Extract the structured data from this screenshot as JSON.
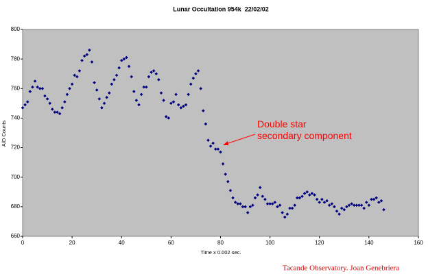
{
  "chart_data": {
    "type": "scatter",
    "title": "Lunar Occultation 954k  22/02/02",
    "x_label": "Time x 0.002 sec.",
    "y_label": "A/D Counts",
    "annotation_lines": [
      "Double star",
      "secondary component"
    ],
    "footer": "Tacande Observatory. Joan Genebriera",
    "color": "#000080",
    "plot_background": "#c0c0c0",
    "grid": false,
    "xlim": [
      0,
      160
    ],
    "xticks": [
      0,
      20,
      40,
      60,
      80,
      100,
      120,
      140,
      160
    ],
    "ylim": [
      660,
      800
    ],
    "yticks": [
      660,
      680,
      700,
      720,
      740,
      760,
      780,
      800
    ],
    "x": [
      0,
      1,
      2,
      3,
      4,
      5,
      6,
      7,
      8,
      9,
      10,
      11,
      12,
      13,
      14,
      15,
      16,
      17,
      18,
      19,
      20,
      21,
      22,
      23,
      24,
      25,
      26,
      27,
      28,
      29,
      30,
      31,
      32,
      33,
      34,
      35,
      36,
      37,
      38,
      39,
      40,
      41,
      42,
      43,
      44,
      45,
      46,
      47,
      48,
      49,
      50,
      51,
      52,
      53,
      54,
      55,
      56,
      57,
      58,
      59,
      60,
      61,
      62,
      63,
      64,
      65,
      66,
      67,
      68,
      69,
      70,
      71,
      72,
      73,
      74,
      75,
      76,
      77,
      78,
      79,
      80,
      81,
      82,
      83,
      84,
      85,
      86,
      87,
      88,
      89,
      90,
      91,
      92,
      93,
      94,
      95,
      96,
      97,
      98,
      99,
      100,
      101,
      102,
      103,
      104,
      105,
      106,
      107,
      108,
      109,
      110,
      111,
      112,
      113,
      114,
      115,
      116,
      117,
      118,
      119,
      120,
      121,
      122,
      123,
      124,
      125,
      126,
      127,
      128,
      129,
      130,
      131,
      132,
      133,
      134,
      135,
      136,
      137,
      138,
      139,
      140,
      141,
      142,
      143,
      144,
      145,
      146
    ],
    "values": [
      747,
      749,
      751,
      758,
      761,
      765,
      761,
      760,
      760,
      755,
      753,
      750,
      746,
      744,
      744,
      743,
      747,
      751,
      756,
      760,
      763,
      769,
      768,
      772,
      779,
      782,
      783,
      786,
      778,
      764,
      759,
      753,
      747,
      750,
      754,
      757,
      763,
      766,
      769,
      774,
      779,
      780,
      781,
      775,
      768,
      758,
      752,
      749,
      756,
      761,
      761,
      768,
      771,
      772,
      770,
      766,
      757,
      752,
      741,
      740,
      750,
      751,
      756,
      749,
      747,
      748,
      749,
      756,
      763,
      767,
      770,
      772,
      760,
      745,
      736,
      725,
      721,
      723,
      719,
      719,
      717,
      709,
      702,
      697,
      691,
      686,
      683,
      682,
      682,
      680,
      680,
      676,
      680,
      681,
      686,
      688,
      693,
      687,
      685,
      682,
      682,
      682,
      683,
      680,
      681,
      676,
      673,
      675,
      679,
      679,
      681,
      686,
      686,
      687,
      689,
      690,
      688,
      689,
      688,
      685,
      683,
      685,
      683,
      684,
      681,
      682,
      680,
      677,
      675,
      679,
      678,
      680,
      681,
      682,
      681,
      681,
      681,
      681,
      679,
      683,
      681,
      685,
      685,
      686,
      683,
      684,
      678
    ]
  }
}
